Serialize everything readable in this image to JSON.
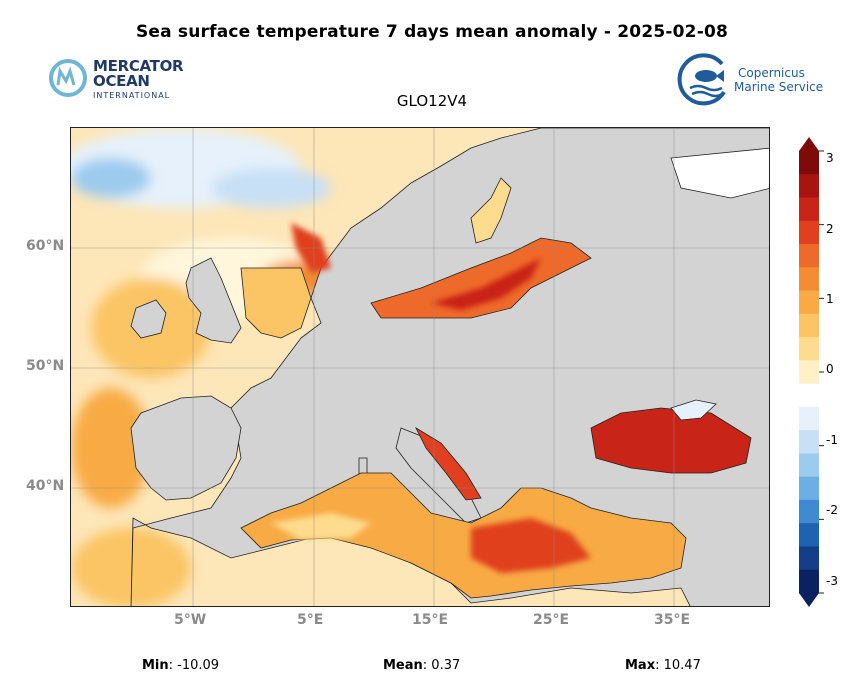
{
  "title": "Sea surface temperature 7 days mean anomaly - 2025-02-08",
  "subtitle": "GLO12V4",
  "logos": {
    "mercator_line1": "MERCATOR",
    "mercator_line2": "OCEAN",
    "mercator_line3": "INTERNATIONAL",
    "copernicus_line1": "Copernicus",
    "copernicus_line2": "Marine Service"
  },
  "map": {
    "lat_labels": [
      "60°N",
      "50°N",
      "40°N"
    ],
    "lon_labels": [
      "5°W",
      "5°E",
      "15°E",
      "25°E",
      "35°E"
    ],
    "land_color": "#d3d3d3",
    "ocean_base_color": "#fde6b8"
  },
  "colorbar": {
    "ticks": [
      "3",
      "2",
      "1",
      "0",
      "-1",
      "-2",
      "-3"
    ],
    "min": -3,
    "max": 3,
    "colors": [
      "#7f0a0a",
      "#a8140f",
      "#c92418",
      "#e0401f",
      "#ee6a2a",
      "#f48c34",
      "#f8aa45",
      "#fbc565",
      "#fddc8f",
      "#fff0c8",
      "#ffffff",
      "#e6f1fb",
      "#c7e0f5",
      "#9ccbee",
      "#6eaee2",
      "#3f8ad0",
      "#1f62b0",
      "#153d88",
      "#0c2160"
    ]
  },
  "stats": {
    "min_label": "Min",
    "min_value": ": -10.09",
    "mean_label": "Mean",
    "mean_value": ": 0.37",
    "max_label": "Max",
    "max_value": ": 10.47"
  }
}
